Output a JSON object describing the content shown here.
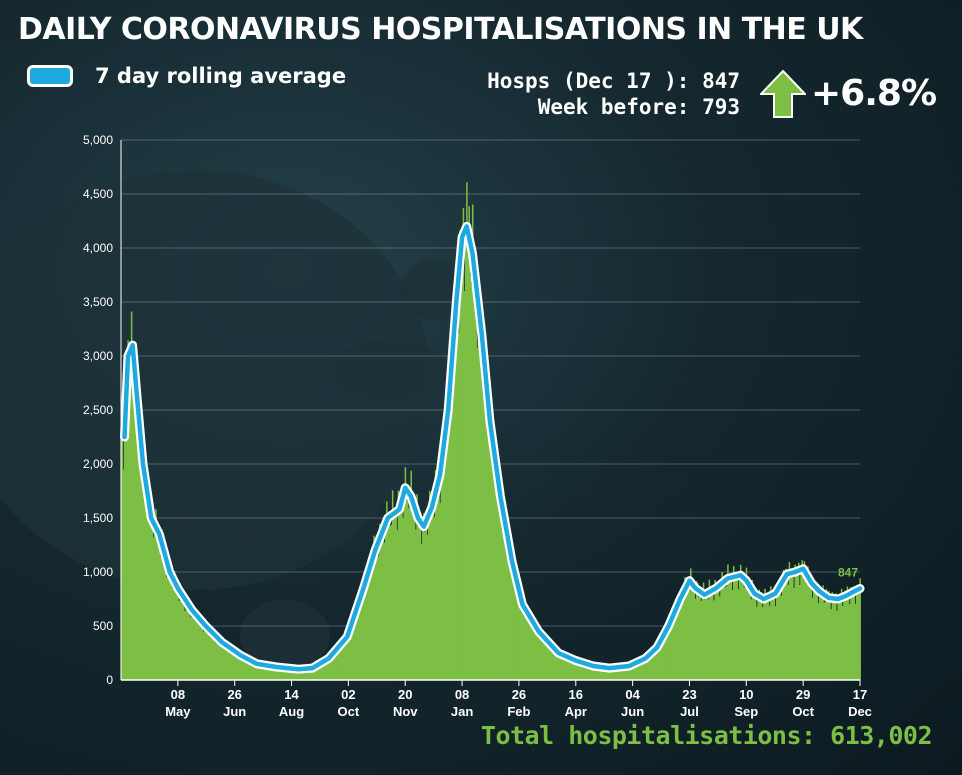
{
  "title": "DAILY CORONAVIRUS HOSPITALISATIONS IN THE UK",
  "legend": {
    "label": "7 day rolling average"
  },
  "stats": {
    "latest_label": "Hosps (Dec 17 ):",
    "latest_value": "847",
    "before_label": "Week before:",
    "before_value": "793",
    "change": "+6.8%"
  },
  "total": "Total hospitalisations: 613,002",
  "colors": {
    "bars": "#7dbf44",
    "line": "#1ea9e1",
    "line_outline": "#ffffff",
    "arrow": "#7dbf44"
  },
  "icons": {
    "change_arrow": "up-arrow-icon",
    "legend_swatch": "line-swatch"
  },
  "chart_data": {
    "type": "bar",
    "ylim": [
      0,
      5000
    ],
    "yticks": [
      0,
      500,
      1000,
      1500,
      2000,
      2500,
      3000,
      3500,
      4000,
      4500,
      5000
    ],
    "ytick_labels": [
      "0",
      "500",
      "1,000",
      "1,500",
      "2,000",
      "2,500",
      "3,000",
      "3,500",
      "4,000",
      "4,500",
      "5,000"
    ],
    "grid": true,
    "x_range": [
      "2020-03-20",
      "2021-12-17"
    ],
    "xtick_dates": [
      "2020-05-08",
      "2020-06-26",
      "2020-08-14",
      "2020-10-02",
      "2020-11-20",
      "2021-01-08",
      "2021-02-26",
      "2021-04-16",
      "2021-06-04",
      "2021-07-23",
      "2021-09-10",
      "2021-10-29",
      "2021-12-17"
    ],
    "xtick_days": [
      "08",
      "26",
      "14",
      "02",
      "20",
      "08",
      "26",
      "16",
      "04",
      "23",
      "10",
      "29",
      "17"
    ],
    "xtick_months": [
      "May",
      "Jun",
      "Aug",
      "Oct",
      "Nov",
      "Jan",
      "Feb",
      "Apr",
      "Jun",
      "Jul",
      "Sep",
      "Oct",
      "Dec"
    ],
    "series": [
      {
        "name": "7 day rolling average",
        "type": "line",
        "points": [
          [
            "2020-03-23",
            2250
          ],
          [
            "2020-03-26",
            3000
          ],
          [
            "2020-03-30",
            3100
          ],
          [
            "2020-04-03",
            2600
          ],
          [
            "2020-04-08",
            2000
          ],
          [
            "2020-04-15",
            1500
          ],
          [
            "2020-04-22",
            1350
          ],
          [
            "2020-05-01",
            1000
          ],
          [
            "2020-05-08",
            850
          ],
          [
            "2020-05-20",
            650
          ],
          [
            "2020-06-01",
            500
          ],
          [
            "2020-06-15",
            350
          ],
          [
            "2020-07-01",
            230
          ],
          [
            "2020-07-15",
            150
          ],
          [
            "2020-08-01",
            120
          ],
          [
            "2020-08-20",
            100
          ],
          [
            "2020-09-01",
            110
          ],
          [
            "2020-09-15",
            200
          ],
          [
            "2020-10-01",
            400
          ],
          [
            "2020-10-15",
            850
          ],
          [
            "2020-10-25",
            1200
          ],
          [
            "2020-11-05",
            1500
          ],
          [
            "2020-11-15",
            1580
          ],
          [
            "2020-11-20",
            1780
          ],
          [
            "2020-11-25",
            1700
          ],
          [
            "2020-12-01",
            1500
          ],
          [
            "2020-12-06",
            1420
          ],
          [
            "2020-12-13",
            1600
          ],
          [
            "2020-12-20",
            1900
          ],
          [
            "2020-12-27",
            2500
          ],
          [
            "2021-01-03",
            3500
          ],
          [
            "2021-01-08",
            4100
          ],
          [
            "2021-01-12",
            4200
          ],
          [
            "2021-01-17",
            3950
          ],
          [
            "2021-01-25",
            3200
          ],
          [
            "2021-02-01",
            2400
          ],
          [
            "2021-02-10",
            1700
          ],
          [
            "2021-02-20",
            1100
          ],
          [
            "2021-03-01",
            700
          ],
          [
            "2021-03-15",
            450
          ],
          [
            "2021-04-01",
            250
          ],
          [
            "2021-04-16",
            180
          ],
          [
            "2021-05-01",
            130
          ],
          [
            "2021-05-15",
            110
          ],
          [
            "2021-06-01",
            130
          ],
          [
            "2021-06-15",
            200
          ],
          [
            "2021-06-25",
            300
          ],
          [
            "2021-07-05",
            500
          ],
          [
            "2021-07-15",
            750
          ],
          [
            "2021-07-23",
            920
          ],
          [
            "2021-07-28",
            850
          ],
          [
            "2021-08-05",
            790
          ],
          [
            "2021-08-15",
            850
          ],
          [
            "2021-08-25",
            940
          ],
          [
            "2021-09-05",
            970
          ],
          [
            "2021-09-10",
            920
          ],
          [
            "2021-09-17",
            800
          ],
          [
            "2021-09-25",
            750
          ],
          [
            "2021-10-05",
            800
          ],
          [
            "2021-10-15",
            980
          ],
          [
            "2021-10-22",
            1000
          ],
          [
            "2021-10-29",
            1030
          ],
          [
            "2021-11-05",
            900
          ],
          [
            "2021-11-12",
            820
          ],
          [
            "2021-11-20",
            760
          ],
          [
            "2021-11-28",
            750
          ],
          [
            "2021-12-05",
            780
          ],
          [
            "2021-12-12",
            820
          ],
          [
            "2021-12-17",
            847
          ]
        ]
      }
    ],
    "annotations": [
      {
        "date": "2021-12-17",
        "value": 847,
        "text": "847"
      }
    ]
  }
}
